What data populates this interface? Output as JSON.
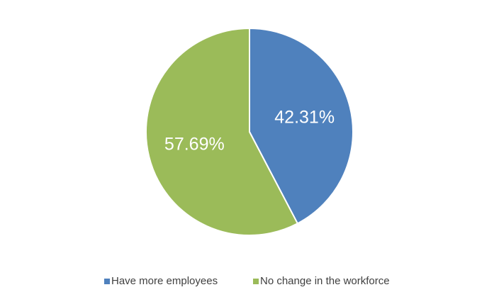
{
  "chart_data": {
    "type": "pie",
    "categories": [
      "Have more employees",
      "No change in the workforce"
    ],
    "values": [
      42.31,
      57.69
    ],
    "value_labels": [
      "42.31%",
      "57.69%"
    ],
    "colors": [
      "#4f81bd",
      "#9bbb59"
    ],
    "legend": "bottom"
  }
}
